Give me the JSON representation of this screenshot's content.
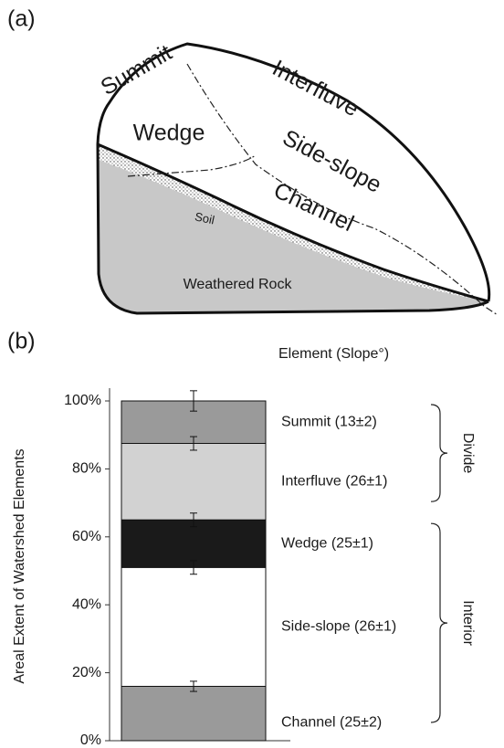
{
  "panel_a": {
    "label": "(a)",
    "summit": "Summit",
    "interfluve": "Interfluve",
    "wedge": "Wedge",
    "side_slope": "Side-slope",
    "channel": "Channel",
    "soil": "Soil",
    "rock": "Weathered Rock"
  },
  "chart_data": {
    "type": "bar",
    "stacked": true,
    "panel_label": "(b)",
    "header": "Element (Slope°)",
    "ylabel": "Areal Extent of Watershed Elements",
    "ylim": [
      0,
      100
    ],
    "yticks": [
      {
        "value": 0,
        "label": "0%"
      },
      {
        "value": 20,
        "label": "20%"
      },
      {
        "value": 40,
        "label": "40%"
      },
      {
        "value": 60,
        "label": "60%"
      },
      {
        "value": 80,
        "label": "80%"
      },
      {
        "value": 100,
        "label": "100%"
      }
    ],
    "series": [
      {
        "name": "Channel (25±2)",
        "color": "#9a9a9a",
        "values": [
          16
        ],
        "errors": [
          1.5
        ]
      },
      {
        "name": "Side-slope (26±1)",
        "color": "#ffffff",
        "values": [
          35
        ],
        "errors": [
          2
        ]
      },
      {
        "name": "Wedge (25±1)",
        "color": "#1a1a1a",
        "values": [
          14
        ],
        "errors": [
          2
        ]
      },
      {
        "name": "Interfluve (26±1)",
        "color": "#d2d2d2",
        "values": [
          22.5
        ],
        "errors": [
          2
        ]
      },
      {
        "name": "Summit (13±2)",
        "color": "#9a9a9a",
        "values": [
          12.5
        ],
        "errors": [
          3
        ]
      }
    ],
    "groups": [
      {
        "label": "Interior",
        "series": [
          0,
          1,
          2
        ]
      },
      {
        "label": "Divide",
        "series": [
          3,
          4
        ]
      }
    ]
  }
}
